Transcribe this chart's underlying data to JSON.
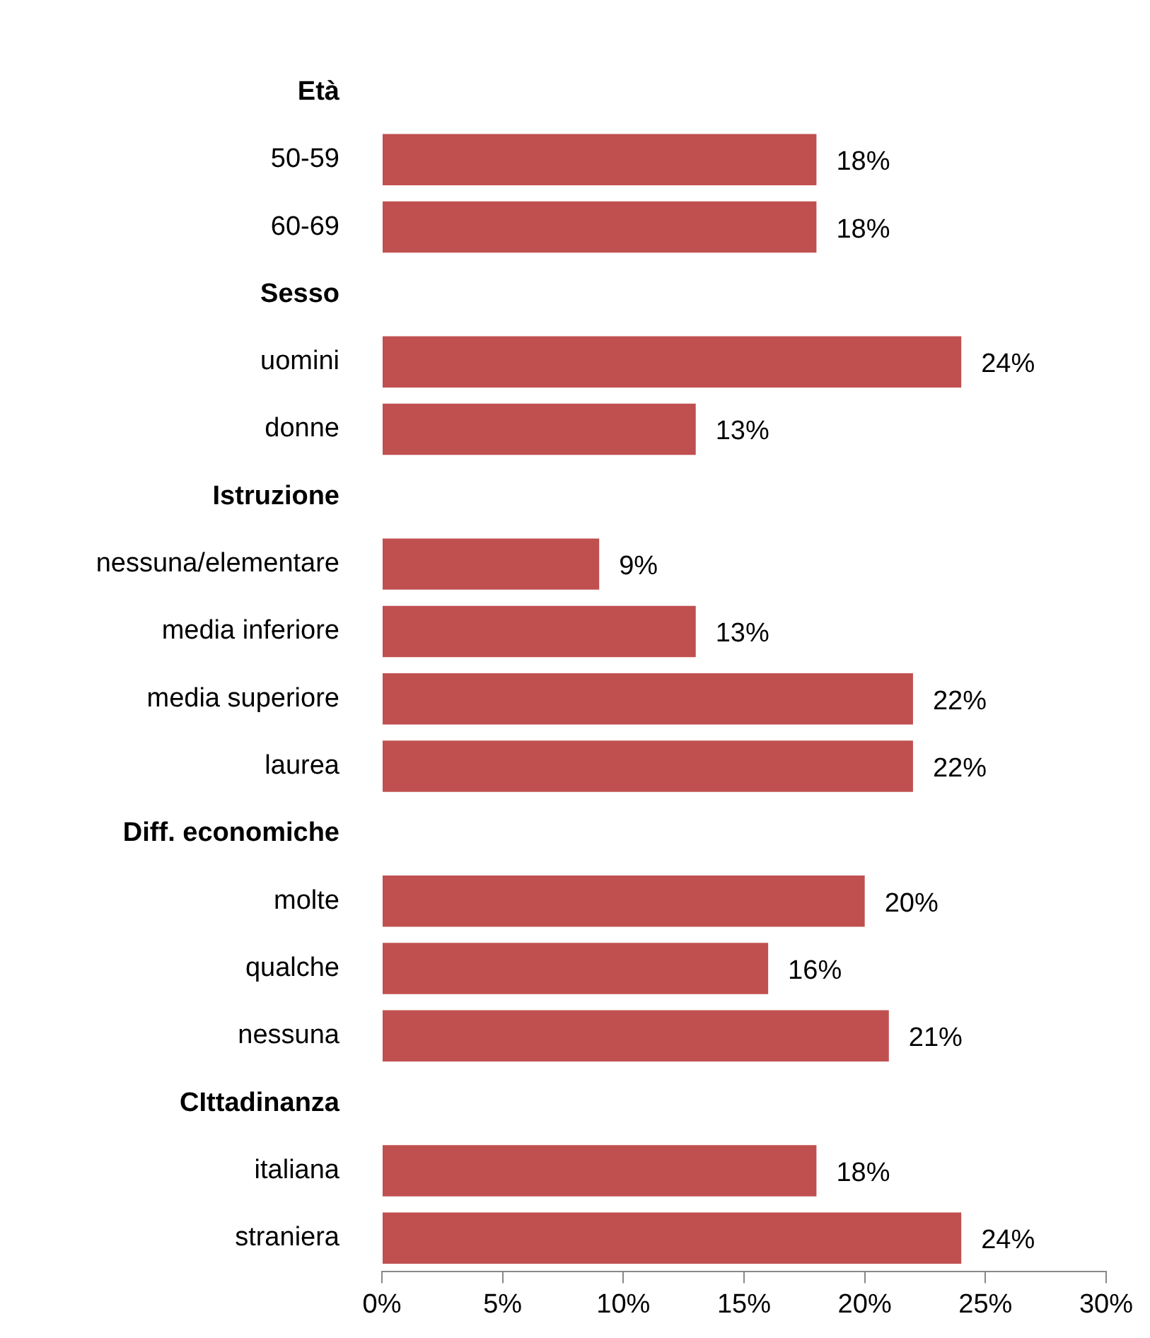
{
  "chart_data": {
    "type": "bar",
    "orientation": "horizontal",
    "categories": [
      "Età",
      "50-59",
      "60-69",
      "Sesso",
      "uomini",
      "donne",
      "Istruzione",
      "nessuna/elementare",
      "media inferiore",
      "media superiore",
      "laurea",
      "Diff. economiche",
      "molte",
      "qualche",
      "nessuna",
      "CIttadinanza",
      "italiana",
      "straniera"
    ],
    "values": [
      null,
      18,
      18,
      null,
      24,
      13,
      null,
      9,
      13,
      22,
      22,
      null,
      20,
      16,
      21,
      null,
      18,
      24
    ],
    "value_labels": [
      null,
      "18%",
      "18%",
      null,
      "24%",
      "13%",
      null,
      "9%",
      "13%",
      "22%",
      "22%",
      null,
      "20%",
      "16%",
      "21%",
      null,
      "18%",
      "24%"
    ],
    "color": "#c0504f",
    "xlim": [
      0,
      30
    ],
    "xticks": [
      {
        "value": 0,
        "label": "0%"
      },
      {
        "value": 5,
        "label": "5%"
      },
      {
        "value": 10,
        "label": "10%"
      },
      {
        "value": 15,
        "label": "15%"
      },
      {
        "value": 20,
        "label": "20%"
      },
      {
        "value": 25,
        "label": "25%"
      },
      {
        "value": 30,
        "label": "30%"
      }
    ],
    "grid": false,
    "legend": false
  }
}
